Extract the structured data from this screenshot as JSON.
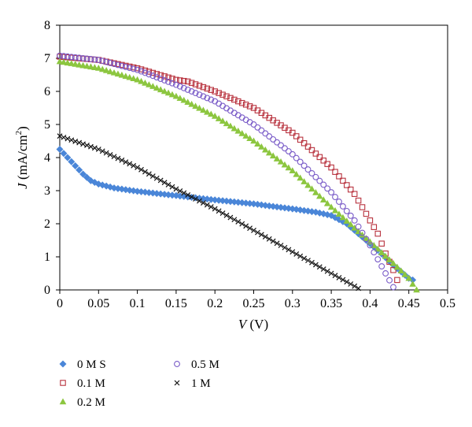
{
  "chart_data": {
    "type": "scatter",
    "xlabel": {
      "italic": "V",
      "unit": " (V)"
    },
    "ylabel": {
      "italic": "J",
      "unit": " (mA/cm",
      "sup": "2",
      "close": ")"
    },
    "xlim": [
      0,
      0.5
    ],
    "ylim": [
      0,
      8
    ],
    "x_ticks": [
      "0",
      "0.05",
      "0.1",
      "0.15",
      "0.2",
      "0.25",
      "0.3",
      "0.35",
      "0.4",
      "0.45",
      "0.5"
    ],
    "y_ticks": [
      "0",
      "1",
      "2",
      "3",
      "4",
      "5",
      "6",
      "7",
      "8"
    ],
    "x_step": 0.005,
    "grid": false,
    "legend_position": "bottom",
    "series": [
      {
        "name": "0 M S",
        "marker": "diamond",
        "color": "#4a86d8",
        "x_end": 0.455,
        "points": [
          [
            0,
            4.25
          ],
          [
            0.01,
            4.0
          ],
          [
            0.02,
            3.75
          ],
          [
            0.03,
            3.5
          ],
          [
            0.04,
            3.3
          ],
          [
            0.05,
            3.2
          ],
          [
            0.07,
            3.08
          ],
          [
            0.1,
            2.98
          ],
          [
            0.15,
            2.85
          ],
          [
            0.2,
            2.72
          ],
          [
            0.25,
            2.6
          ],
          [
            0.3,
            2.45
          ],
          [
            0.33,
            2.35
          ],
          [
            0.35,
            2.25
          ],
          [
            0.37,
            2.0
          ],
          [
            0.39,
            1.6
          ],
          [
            0.41,
            1.2
          ],
          [
            0.43,
            0.75
          ],
          [
            0.44,
            0.55
          ],
          [
            0.45,
            0.35
          ],
          [
            0.455,
            0.3
          ]
        ]
      },
      {
        "name": "0.1 M",
        "marker": "square-open",
        "color": "#b8323e",
        "x_end": 0.435,
        "points": [
          [
            0,
            7.05
          ],
          [
            0.05,
            6.95
          ],
          [
            0.1,
            6.7
          ],
          [
            0.15,
            6.35
          ],
          [
            0.165,
            6.3
          ],
          [
            0.2,
            6.0
          ],
          [
            0.25,
            5.5
          ],
          [
            0.3,
            4.75
          ],
          [
            0.35,
            3.7
          ],
          [
            0.38,
            2.9
          ],
          [
            0.4,
            2.1
          ],
          [
            0.41,
            1.7
          ],
          [
            0.42,
            1.1
          ],
          [
            0.43,
            0.6
          ],
          [
            0.435,
            0.3
          ]
        ]
      },
      {
        "name": "0.2 M",
        "marker": "triangle",
        "color": "#8cc63f",
        "x_end": 0.46,
        "points": [
          [
            0,
            6.9
          ],
          [
            0.05,
            6.7
          ],
          [
            0.1,
            6.35
          ],
          [
            0.15,
            5.85
          ],
          [
            0.2,
            5.25
          ],
          [
            0.25,
            4.5
          ],
          [
            0.3,
            3.6
          ],
          [
            0.35,
            2.5
          ],
          [
            0.4,
            1.45
          ],
          [
            0.43,
            0.8
          ],
          [
            0.45,
            0.35
          ],
          [
            0.46,
            0.0
          ]
        ]
      },
      {
        "name": "0.5 M",
        "marker": "circle-open",
        "color": "#7a5cc8",
        "x_end": 0.432,
        "points": [
          [
            0,
            7.08
          ],
          [
            0.05,
            6.95
          ],
          [
            0.1,
            6.65
          ],
          [
            0.15,
            6.2
          ],
          [
            0.2,
            5.7
          ],
          [
            0.25,
            5.0
          ],
          [
            0.3,
            4.1
          ],
          [
            0.35,
            2.95
          ],
          [
            0.38,
            2.1
          ],
          [
            0.4,
            1.35
          ],
          [
            0.42,
            0.5
          ],
          [
            0.432,
            0.0
          ]
        ]
      },
      {
        "name": "1 M",
        "marker": "x",
        "color": "#111111",
        "x_end": 0.385,
        "points": [
          [
            0,
            4.65
          ],
          [
            0.05,
            4.25
          ],
          [
            0.1,
            3.7
          ],
          [
            0.15,
            3.05
          ],
          [
            0.2,
            2.45
          ],
          [
            0.25,
            1.8
          ],
          [
            0.3,
            1.15
          ],
          [
            0.35,
            0.5
          ],
          [
            0.385,
            0.05
          ]
        ]
      }
    ]
  }
}
